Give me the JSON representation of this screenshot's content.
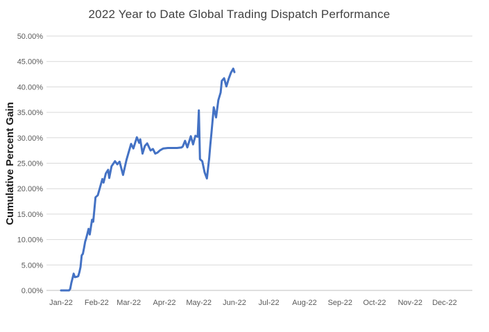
{
  "chart": {
    "title": "2022 Year to Date Global Trading Dispatch Performance",
    "y_axis_title": "Cumulative Percent Gain"
  },
  "chart_data": {
    "type": "line",
    "title": "2022 Year to Date Global Trading Dispatch Performance",
    "xlabel": "",
    "ylabel": "Cumulative Percent Gain",
    "ylim": [
      0,
      50
    ],
    "grid": "horizontal",
    "legend": "none",
    "colors": {
      "line": "#4472C4",
      "gridline": "#D9D9D9",
      "axis_line": "#BFBFBF",
      "tick_label": "#595959",
      "title": "#404040"
    },
    "y_ticks": [
      {
        "label": "0.00%",
        "value": 0
      },
      {
        "label": "5.00%",
        "value": 5
      },
      {
        "label": "10.00%",
        "value": 10
      },
      {
        "label": "15.00%",
        "value": 15
      },
      {
        "label": "20.00%",
        "value": 20
      },
      {
        "label": "25.00%",
        "value": 25
      },
      {
        "label": "30.00%",
        "value": 30
      },
      {
        "label": "35.00%",
        "value": 35
      },
      {
        "label": "40.00%",
        "value": 40
      },
      {
        "label": "45.00%",
        "value": 45
      },
      {
        "label": "50.00%",
        "value": 50
      }
    ],
    "x_ticks": [
      {
        "label": "Jan-22",
        "day": 0
      },
      {
        "label": "Feb-22",
        "day": 31
      },
      {
        "label": "Mar-22",
        "day": 59
      },
      {
        "label": "Apr-22",
        "day": 90
      },
      {
        "label": "May-22",
        "day": 120
      },
      {
        "label": "Jun-22",
        "day": 151
      },
      {
        "label": "Jul-22",
        "day": 181
      },
      {
        "label": "Aug-22",
        "day": 212
      },
      {
        "label": "Sep-22",
        "day": 243
      },
      {
        "label": "Oct-22",
        "day": 273
      },
      {
        "label": "Nov-22",
        "day": 304
      },
      {
        "label": "Dec-22",
        "day": 334
      }
    ],
    "series": [
      {
        "name": "Cumulative Percent Gain",
        "x_unit": "days-since-Jan-1-2022",
        "y_unit": "percent",
        "points": [
          [
            0,
            0
          ],
          [
            7,
            0
          ],
          [
            8,
            0.3
          ],
          [
            9,
            1.5
          ],
          [
            10,
            2.4
          ],
          [
            11,
            3.3
          ],
          [
            12,
            2.6
          ],
          [
            14,
            2.7
          ],
          [
            15,
            2.8
          ],
          [
            16,
            3.6
          ],
          [
            17,
            4.6
          ],
          [
            18,
            6.9
          ],
          [
            19,
            7.2
          ],
          [
            20,
            8.3
          ],
          [
            21,
            9.6
          ],
          [
            22,
            10.3
          ],
          [
            23,
            11.2
          ],
          [
            24,
            12.1
          ],
          [
            25,
            11.0
          ],
          [
            26,
            12.4
          ],
          [
            27,
            13.9
          ],
          [
            28,
            13.5
          ],
          [
            29,
            15.8
          ],
          [
            30,
            18.3
          ],
          [
            32,
            18.7
          ],
          [
            34,
            20.3
          ],
          [
            36,
            21.9
          ],
          [
            37,
            21.2
          ],
          [
            39,
            23.0
          ],
          [
            41,
            23.7
          ],
          [
            42,
            22.1
          ],
          [
            44,
            24.4
          ],
          [
            47,
            25.4
          ],
          [
            49,
            24.8
          ],
          [
            51,
            25.3
          ],
          [
            54,
            22.7
          ],
          [
            57,
            25.7
          ],
          [
            61,
            28.8
          ],
          [
            63,
            27.9
          ],
          [
            66,
            30.1
          ],
          [
            68,
            29.0
          ],
          [
            69,
            29.7
          ],
          [
            71,
            26.9
          ],
          [
            73,
            28.4
          ],
          [
            75,
            28.9
          ],
          [
            78,
            27.5
          ],
          [
            80,
            27.8
          ],
          [
            82,
            26.9
          ],
          [
            84,
            27.1
          ],
          [
            86,
            27.5
          ],
          [
            89,
            27.9
          ],
          [
            93,
            28.0
          ],
          [
            97,
            28.0
          ],
          [
            101,
            28.0
          ],
          [
            105,
            28.1
          ],
          [
            106,
            28.3
          ],
          [
            108,
            29.4
          ],
          [
            110,
            28.1
          ],
          [
            113,
            30.3
          ],
          [
            115,
            28.7
          ],
          [
            117,
            30.4
          ],
          [
            119,
            30.2
          ],
          [
            120,
            35.4
          ],
          [
            121,
            25.8
          ],
          [
            123,
            25.4
          ],
          [
            125,
            23.2
          ],
          [
            127,
            22.0
          ],
          [
            129,
            26.0
          ],
          [
            130,
            28.6
          ],
          [
            131,
            31.0
          ],
          [
            133,
            36.0
          ],
          [
            135,
            34.0
          ],
          [
            137,
            37.4
          ],
          [
            139,
            38.9
          ],
          [
            140,
            41.2
          ],
          [
            142,
            41.7
          ],
          [
            144,
            40.1
          ],
          [
            146,
            41.6
          ],
          [
            148,
            42.8
          ],
          [
            150,
            43.6
          ],
          [
            151,
            42.9
          ]
        ]
      }
    ]
  }
}
